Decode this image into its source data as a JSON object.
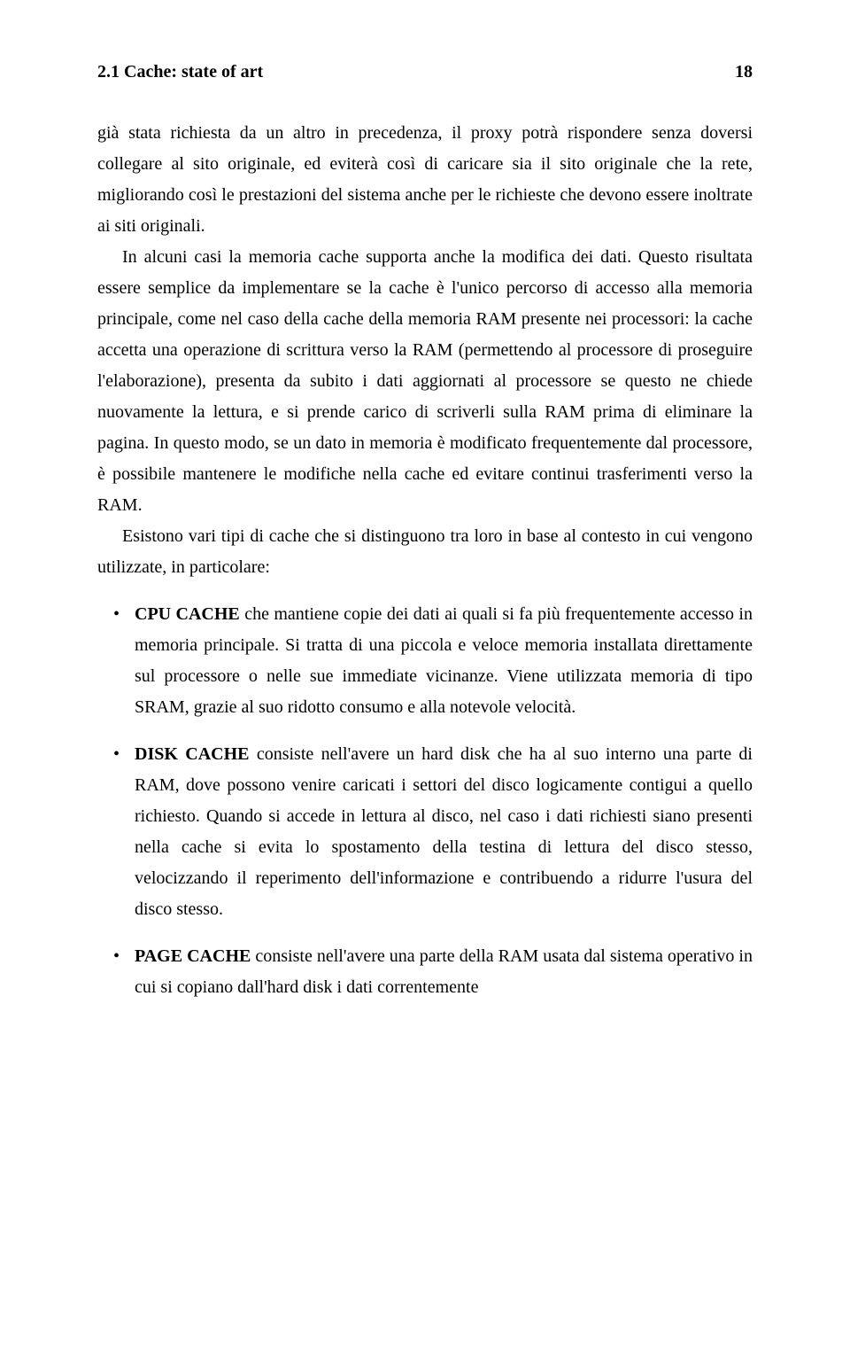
{
  "header": {
    "section": "2.1 Cache: state of art",
    "page_number": "18"
  },
  "paragraphs": {
    "p1": "già stata richiesta da un altro in precedenza, il proxy potrà rispondere senza doversi collegare al sito originale, ed eviterà così di caricare sia il sito originale che la rete, migliorando così le prestazioni del sistema anche per le richieste che devono essere inoltrate ai siti originali.",
    "p2": "In alcuni casi la memoria cache supporta anche la modifica dei dati. Questo risultata essere semplice da implementare se la cache è l'unico percorso di accesso alla memoria principale, come nel caso della cache della memoria RAM presente nei processori: la cache accetta una operazione di scrittura verso la RAM (permettendo al processore di proseguire l'elaborazione), presenta da subito i dati aggiornati al processore se questo ne chiede nuovamente la lettura, e si prende carico di scriverli sulla RAM prima di eliminare la pagina. In questo modo, se un dato in memoria è modificato frequentemente dal processore, è possibile mantenere le modifiche nella cache ed evitare continui trasferimenti verso la RAM.",
    "p3": "Esistono vari tipi di cache che si distinguono tra loro in base al contesto in cui vengono utilizzate, in particolare:"
  },
  "list": {
    "items": [
      {
        "title": "CPU CACHE",
        "text": " che mantiene copie dei dati ai quali si fa più frequentemente accesso in memoria principale. Si tratta di una piccola e veloce memoria installata direttamente sul processore o nelle sue immediate vicinanze. Viene utilizzata memoria di tipo SRAM, grazie al suo ridotto consumo e alla notevole velocità."
      },
      {
        "title": "DISK CACHE",
        "text": " consiste nell'avere un hard disk che ha al suo interno una parte di RAM, dove possono venire caricati i settori del disco logicamente contigui a quello richiesto. Quando si accede in lettura al disco, nel caso i dati richiesti siano presenti nella cache si evita lo spostamento della testina di lettura del disco stesso, velocizzando il reperimento dell'informazione e contribuendo a ridurre l'usura del disco stesso."
      },
      {
        "title": "PAGE CACHE",
        "text": " consiste nell'avere una parte della RAM usata dal sistema operativo in cui si copiano dall'hard disk i dati correntemente"
      }
    ]
  }
}
